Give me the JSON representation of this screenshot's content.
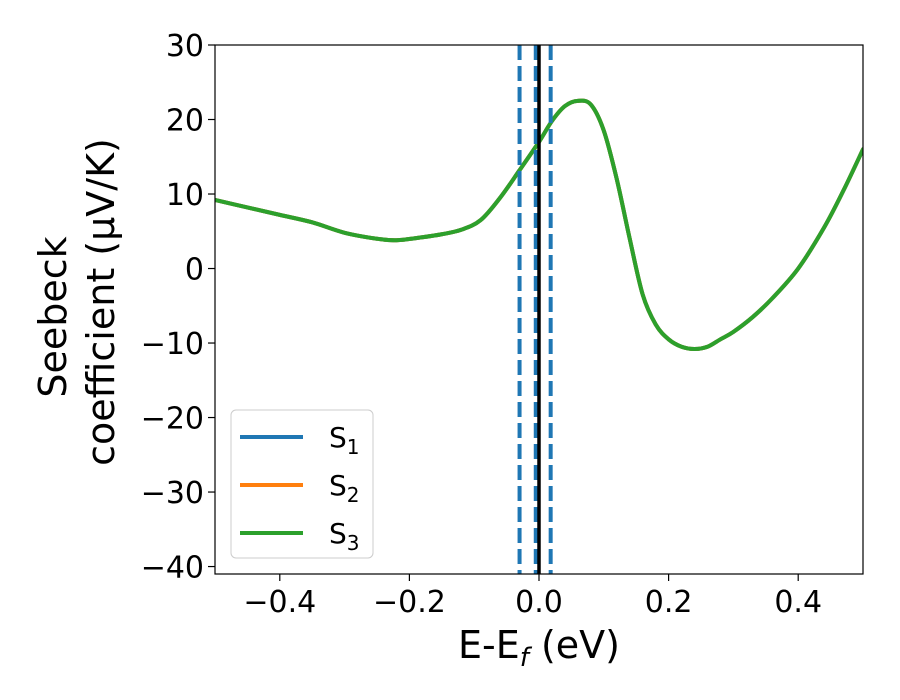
{
  "chart_data": {
    "type": "line",
    "title": "",
    "xlabel": "E-E",
    "xlabel_sub": "f",
    "xlabel_unit": " (eV)",
    "ylabel_line1": "Seebeck",
    "ylabel_line2": "coefficient  (μV/K)",
    "xlim": [
      -0.5,
      0.5
    ],
    "ylim": [
      -41,
      30
    ],
    "xticks": [
      -0.4,
      -0.2,
      0.0,
      0.2,
      0.4
    ],
    "xtick_labels": [
      "−0.4",
      "−0.2",
      "0.0",
      "0.2",
      "0.4"
    ],
    "yticks": [
      30,
      20,
      10,
      0,
      -10,
      -20,
      -30,
      -40
    ],
    "ytick_labels": [
      "30",
      "20",
      "10",
      "0",
      "−10",
      "−20",
      "−30",
      "−40"
    ],
    "grid": false,
    "legend_position": "lower-left",
    "series": [
      {
        "name": "S",
        "sub": "1",
        "color": "#1f77b4",
        "x": [
          -0.5,
          -0.45,
          -0.4,
          -0.35,
          -0.3,
          -0.25,
          -0.22,
          -0.18,
          -0.15,
          -0.12,
          -0.09,
          -0.06,
          -0.03,
          0.0,
          0.02,
          0.04,
          0.06,
          0.08,
          0.1,
          0.12,
          0.14,
          0.16,
          0.18,
          0.2,
          0.22,
          0.24,
          0.26,
          0.28,
          0.3,
          0.33,
          0.36,
          0.4,
          0.44,
          0.47,
          0.5
        ],
        "y": [
          9.2,
          8.2,
          7.2,
          6.2,
          4.8,
          4.0,
          3.8,
          4.2,
          4.6,
          5.2,
          6.5,
          9.5,
          13.2,
          17.0,
          19.8,
          21.8,
          22.5,
          22.0,
          18.5,
          12.0,
          4.0,
          -3.5,
          -7.5,
          -9.5,
          -10.5,
          -10.8,
          -10.5,
          -9.5,
          -8.5,
          -6.5,
          -4.0,
          0.0,
          5.5,
          10.5,
          16.0
        ]
      },
      {
        "name": "S",
        "sub": "2",
        "color": "#ff7f0e",
        "x": [
          -0.5,
          -0.45,
          -0.4,
          -0.35,
          -0.3,
          -0.25,
          -0.22,
          -0.18,
          -0.15,
          -0.12,
          -0.09,
          -0.06,
          -0.03,
          0.0,
          0.02,
          0.04,
          0.06,
          0.08,
          0.1,
          0.12,
          0.14,
          0.16,
          0.18,
          0.2,
          0.22,
          0.24,
          0.26,
          0.28,
          0.3,
          0.33,
          0.36,
          0.4,
          0.44,
          0.47,
          0.5
        ],
        "y": [
          9.2,
          8.2,
          7.2,
          6.2,
          4.8,
          4.0,
          3.8,
          4.2,
          4.6,
          5.2,
          6.5,
          9.5,
          13.2,
          17.0,
          19.8,
          21.8,
          22.5,
          22.0,
          18.5,
          12.0,
          4.0,
          -3.5,
          -7.5,
          -9.5,
          -10.5,
          -10.8,
          -10.5,
          -9.5,
          -8.5,
          -6.5,
          -4.0,
          0.0,
          5.5,
          10.5,
          16.0
        ]
      },
      {
        "name": "S",
        "sub": "3",
        "color": "#2ca02c",
        "x": [
          -0.5,
          -0.45,
          -0.4,
          -0.35,
          -0.3,
          -0.25,
          -0.22,
          -0.18,
          -0.15,
          -0.12,
          -0.09,
          -0.06,
          -0.03,
          0.0,
          0.02,
          0.04,
          0.06,
          0.08,
          0.1,
          0.12,
          0.14,
          0.16,
          0.18,
          0.2,
          0.22,
          0.24,
          0.26,
          0.28,
          0.3,
          0.33,
          0.36,
          0.4,
          0.44,
          0.47,
          0.5
        ],
        "y": [
          9.2,
          8.2,
          7.2,
          6.2,
          4.8,
          4.0,
          3.8,
          4.2,
          4.6,
          5.2,
          6.5,
          9.5,
          13.2,
          17.0,
          19.8,
          21.8,
          22.5,
          22.0,
          18.5,
          12.0,
          4.0,
          -3.5,
          -7.5,
          -9.5,
          -10.5,
          -10.8,
          -10.5,
          -9.5,
          -8.5,
          -6.5,
          -4.0,
          0.0,
          5.5,
          10.5,
          16.0
        ]
      }
    ],
    "vlines": [
      {
        "x": -0.03,
        "style": "dashed",
        "color": "#1f77b4"
      },
      {
        "x": -0.005,
        "style": "dashed",
        "color": "#1f77b4"
      },
      {
        "x": 0.018,
        "style": "dashed",
        "color": "#1f77b4"
      },
      {
        "x": 0.0,
        "style": "solid",
        "color": "#000000"
      }
    ]
  }
}
